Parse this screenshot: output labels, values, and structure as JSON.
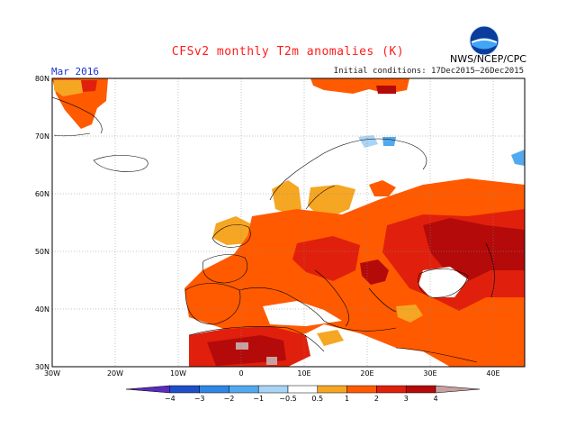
{
  "title": "CFSv2 monthly T2m anomalies (K)",
  "period": "Mar 2016",
  "initial_conditions": "Initial conditions: 17Dec2015–26Dec2015",
  "agency": "NWS/NCEP/CPC",
  "logo": {
    "name": "noaa-logo",
    "text": "NOAA"
  },
  "map": {
    "lat_labels": [
      "80N",
      "70N",
      "60N",
      "50N",
      "40N",
      "30N"
    ],
    "lon_labels": [
      "30W",
      "20W",
      "10W",
      "0",
      "10E",
      "20E",
      "30E",
      "40E"
    ],
    "lat_range": [
      30,
      80
    ],
    "lon_range": [
      -30,
      45
    ]
  },
  "colorbar": {
    "labels": [
      "−4",
      "−3",
      "−2",
      "−1",
      "−0.5",
      "0.5",
      "1",
      "2",
      "3",
      "4"
    ],
    "colors": [
      "#5a2bbd",
      "#1e4fc9",
      "#2f86e6",
      "#52a9ee",
      "#a8d4f5",
      "#ffffff",
      "#f5a623",
      "#ff5a00",
      "#e0200c",
      "#b40a0a",
      "#c8a0a0"
    ]
  }
}
